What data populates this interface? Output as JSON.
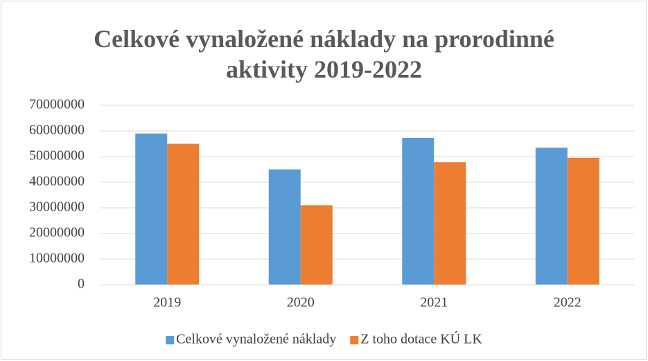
{
  "chart_data": {
    "type": "bar",
    "title": "Celkové vynaložené náklady na prorodinné aktivity 2019-2022",
    "categories": [
      "2019",
      "2020",
      "2021",
      "2022"
    ],
    "series": [
      {
        "name": "Celkové vynaložené náklady",
        "color": "#5b9bd5",
        "values": [
          59000000,
          45000000,
          57300000,
          53500000
        ]
      },
      {
        "name": "Z toho dotace KÚ LK",
        "color": "#ed7d31",
        "values": [
          55000000,
          31000000,
          47800000,
          49500000
        ]
      }
    ],
    "ylim": [
      0,
      70000000
    ],
    "yticks": [
      0,
      10000000,
      20000000,
      30000000,
      40000000,
      50000000,
      60000000,
      70000000
    ],
    "grid": true,
    "legend": "bottom"
  }
}
